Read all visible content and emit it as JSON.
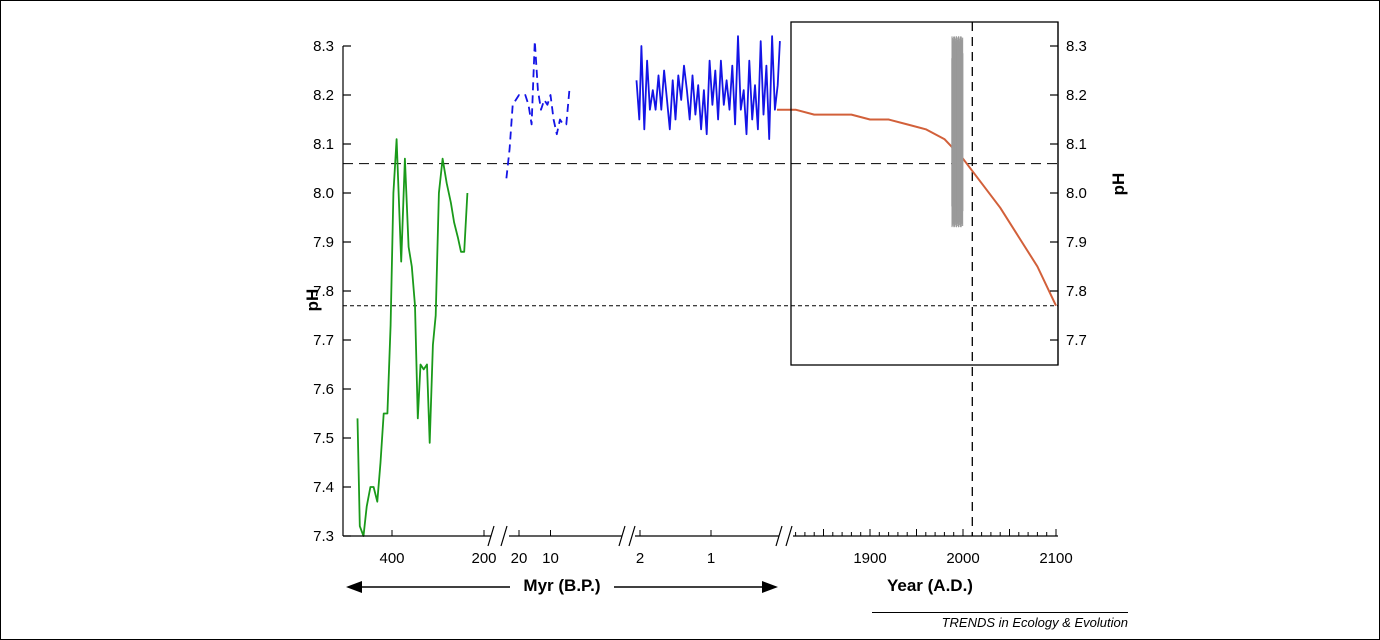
{
  "chart_data": {
    "type": "line",
    "y_ticks": [
      "8.3",
      "8.2",
      "8.1",
      "8.0",
      "7.9",
      "7.8",
      "7.7",
      "7.6",
      "7.5",
      "7.4",
      "7.3"
    ],
    "inset_y_ticks": [
      "8.3",
      "8.2",
      "8.1",
      "8.0",
      "7.9",
      "7.8",
      "7.7"
    ],
    "ylim": [
      7.3,
      8.3
    ],
    "ylabel": "pH",
    "inset_ylabel": "pH",
    "xlabel": "Myr (B.P.)",
    "xlabel_year": "Year (A.D.)",
    "reference_lines": [
      8.06,
      7.77
    ],
    "reference_year": 2010,
    "credit": "TRENDS in Ecology & Evolution",
    "colors": {
      "green": "#1a9a1a",
      "blue": "#1414e6",
      "red": "#d2603a",
      "gray": "#9a9a9a",
      "axis": "#000000"
    },
    "panels": [
      {
        "name": "Myr-scale (hundreds of Myr)",
        "x_ticks": [
          "400",
          "200"
        ],
        "series": [
          {
            "style": "green-solid",
            "x": [
              475,
              470,
              462,
              455,
              447,
              440,
              432,
              425,
              418,
              410,
              403,
              397,
              390,
              380,
              372,
              364,
              357,
              350,
              344,
              338,
              331,
              324,
              318,
              311,
              305,
              298,
              290,
              281,
              272,
              265,
              257,
              250,
              243,
              236
            ],
            "y": [
              7.54,
              7.32,
              7.3,
              7.36,
              7.4,
              7.4,
              7.37,
              7.45,
              7.55,
              7.55,
              7.73,
              8.0,
              8.11,
              7.86,
              8.07,
              7.89,
              7.85,
              7.77,
              7.54,
              7.65,
              7.64,
              7.65,
              7.49,
              7.69,
              7.75,
              8.0,
              8.07,
              8.02,
              7.98,
              7.94,
              7.91,
              7.88,
              7.88,
              8.0
            ]
          }
        ]
      },
      {
        "name": "Myr-scale (tens of Myr)",
        "x_ticks": [
          "20",
          "10"
        ],
        "series": [
          {
            "style": "blue-dashed",
            "x": [
              24,
              23,
              22,
              20,
              18,
              17,
              16,
              15,
              14,
              13,
              12,
              11,
              10,
              9,
              8,
              7,
              6,
              5,
              4
            ],
            "y": [
              8.03,
              8.09,
              8.18,
              8.2,
              8.2,
              8.18,
              8.14,
              8.31,
              8.21,
              8.17,
              8.19,
              8.18,
              8.2,
              8.15,
              8.12,
              8.15,
              8.14,
              8.14,
              8.21
            ]
          }
        ]
      },
      {
        "name": "Myr-scale (0-2 Myr)",
        "x_ticks": [
          "2",
          "1"
        ],
        "series": [
          {
            "style": "blue-solid",
            "x": [
              2.05,
              2.01,
              1.98,
              1.94,
              1.9,
              1.86,
              1.82,
              1.78,
              1.74,
              1.7,
              1.66,
              1.62,
              1.58,
              1.54,
              1.5,
              1.46,
              1.42,
              1.38,
              1.34,
              1.3,
              1.26,
              1.22,
              1.18,
              1.14,
              1.1,
              1.06,
              1.02,
              0.98,
              0.94,
              0.9,
              0.86,
              0.82,
              0.78,
              0.74,
              0.7,
              0.66,
              0.62,
              0.58,
              0.54,
              0.5,
              0.46,
              0.42,
              0.38,
              0.34,
              0.3,
              0.26,
              0.22,
              0.18,
              0.14,
              0.1,
              0.06,
              0.03
            ],
            "y": [
              8.23,
              8.15,
              8.3,
              8.13,
              8.27,
              8.17,
              8.21,
              8.17,
              8.24,
              8.17,
              8.25,
              8.19,
              8.13,
              8.23,
              8.15,
              8.24,
              8.19,
              8.26,
              8.21,
              8.15,
              8.24,
              8.16,
              8.22,
              8.13,
              8.21,
              8.12,
              8.27,
              8.18,
              8.25,
              8.15,
              8.27,
              8.18,
              8.23,
              8.17,
              8.26,
              8.14,
              8.32,
              8.17,
              8.21,
              8.12,
              8.27,
              8.15,
              8.22,
              8.13,
              8.31,
              8.16,
              8.26,
              8.11,
              8.32,
              8.17,
              8.22,
              8.31
            ]
          }
        ]
      },
      {
        "name": "Year (A.D.)",
        "x_ticks": [
          "1900",
          "2000",
          "2100"
        ],
        "xlim": [
          1800,
          2100
        ],
        "series": [
          {
            "style": "red-solid",
            "x": [
              1800,
              1820,
              1840,
              1860,
              1880,
              1900,
              1920,
              1940,
              1960,
              1980,
              2000,
              2020,
              2040,
              2060,
              2080,
              2100
            ],
            "y": [
              8.17,
              8.17,
              8.16,
              8.16,
              8.16,
              8.15,
              8.15,
              8.14,
              8.13,
              8.11,
              8.07,
              8.02,
              7.97,
              7.91,
              7.85,
              7.77
            ]
          },
          {
            "style": "gray-band",
            "x": [
              1988,
              2000
            ],
            "y_min": 7.92,
            "y_max": 8.32
          }
        ]
      }
    ]
  }
}
